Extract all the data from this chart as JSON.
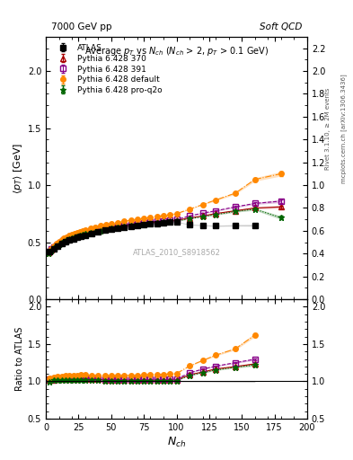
{
  "title_left": "7000 GeV pp",
  "title_right": "Soft QCD",
  "plot_title": "Average p_{T} vs N_{ch} (N_{ch} > 2, p_{T} > 0.1 GeV)",
  "xlabel": "N_{ch}",
  "ylabel_main": "⟨p_{T}⟩ [GeV]",
  "ylabel_ratio": "Ratio to ATLAS",
  "watermark": "ATLAS_2010_S8918562",
  "right_label": "Rivet 3.1.10, ≥ 2M events",
  "right_label2": "mcplots.cern.ch [arXiv:1306.3436]",
  "atlas_x": [
    3,
    6,
    9,
    12,
    15,
    18,
    21,
    24,
    27,
    30,
    35,
    40,
    45,
    50,
    55,
    60,
    65,
    70,
    75,
    80,
    85,
    90,
    95,
    100,
    110,
    120,
    130,
    145,
    160
  ],
  "atlas_y": [
    0.415,
    0.445,
    0.468,
    0.487,
    0.503,
    0.517,
    0.53,
    0.541,
    0.551,
    0.561,
    0.578,
    0.591,
    0.604,
    0.615,
    0.624,
    0.633,
    0.641,
    0.648,
    0.655,
    0.661,
    0.666,
    0.671,
    0.675,
    0.679,
    0.655,
    0.649,
    0.644,
    0.648,
    0.648
  ],
  "atlas_yerr": [
    0.005,
    0.004,
    0.004,
    0.003,
    0.003,
    0.003,
    0.003,
    0.003,
    0.003,
    0.003,
    0.003,
    0.003,
    0.003,
    0.003,
    0.003,
    0.003,
    0.003,
    0.003,
    0.003,
    0.003,
    0.003,
    0.003,
    0.003,
    0.003,
    0.004,
    0.004,
    0.005,
    0.006,
    0.007
  ],
  "py370_x": [
    2,
    4,
    6,
    8,
    10,
    12,
    14,
    16,
    18,
    20,
    22,
    24,
    26,
    28,
    30,
    34,
    38,
    42,
    46,
    50,
    55,
    60,
    65,
    70,
    75,
    80,
    85,
    90,
    95,
    100,
    110,
    120,
    130,
    145,
    160,
    180
  ],
  "py370_y": [
    0.41,
    0.435,
    0.455,
    0.472,
    0.487,
    0.5,
    0.512,
    0.524,
    0.534,
    0.543,
    0.552,
    0.56,
    0.567,
    0.574,
    0.58,
    0.591,
    0.601,
    0.61,
    0.618,
    0.626,
    0.635,
    0.643,
    0.65,
    0.657,
    0.664,
    0.67,
    0.676,
    0.681,
    0.686,
    0.691,
    0.713,
    0.73,
    0.751,
    0.776,
    0.8,
    0.81
  ],
  "py370_yerr": [
    0.003,
    0.003,
    0.003,
    0.003,
    0.002,
    0.002,
    0.002,
    0.002,
    0.002,
    0.002,
    0.002,
    0.002,
    0.002,
    0.002,
    0.002,
    0.002,
    0.002,
    0.002,
    0.002,
    0.002,
    0.002,
    0.002,
    0.002,
    0.002,
    0.002,
    0.002,
    0.002,
    0.002,
    0.002,
    0.002,
    0.003,
    0.004,
    0.005,
    0.006,
    0.008,
    0.012
  ],
  "py391_x": [
    2,
    4,
    6,
    8,
    10,
    12,
    14,
    16,
    18,
    20,
    22,
    24,
    26,
    28,
    30,
    34,
    38,
    42,
    46,
    50,
    55,
    60,
    65,
    70,
    75,
    80,
    85,
    90,
    95,
    100,
    110,
    120,
    130,
    145,
    160,
    180
  ],
  "py391_y": [
    0.415,
    0.44,
    0.46,
    0.477,
    0.492,
    0.506,
    0.518,
    0.529,
    0.539,
    0.549,
    0.558,
    0.566,
    0.573,
    0.58,
    0.586,
    0.598,
    0.608,
    0.617,
    0.626,
    0.633,
    0.642,
    0.65,
    0.658,
    0.665,
    0.672,
    0.678,
    0.684,
    0.689,
    0.694,
    0.699,
    0.73,
    0.755,
    0.775,
    0.81,
    0.84,
    0.86
  ],
  "py391_yerr": [
    0.003,
    0.003,
    0.003,
    0.002,
    0.002,
    0.002,
    0.002,
    0.002,
    0.002,
    0.002,
    0.002,
    0.002,
    0.002,
    0.002,
    0.002,
    0.002,
    0.002,
    0.002,
    0.002,
    0.002,
    0.002,
    0.002,
    0.002,
    0.002,
    0.002,
    0.002,
    0.002,
    0.002,
    0.002,
    0.002,
    0.003,
    0.004,
    0.005,
    0.006,
    0.009,
    0.013
  ],
  "pydef_x": [
    2,
    4,
    6,
    8,
    10,
    12,
    14,
    16,
    18,
    20,
    22,
    24,
    26,
    28,
    30,
    34,
    38,
    42,
    46,
    50,
    55,
    60,
    65,
    70,
    75,
    80,
    85,
    90,
    95,
    100,
    110,
    120,
    130,
    145,
    160,
    180
  ],
  "pydef_y": [
    0.42,
    0.445,
    0.468,
    0.488,
    0.505,
    0.52,
    0.534,
    0.546,
    0.557,
    0.567,
    0.577,
    0.586,
    0.594,
    0.602,
    0.609,
    0.622,
    0.634,
    0.644,
    0.654,
    0.663,
    0.673,
    0.683,
    0.692,
    0.701,
    0.71,
    0.718,
    0.726,
    0.734,
    0.742,
    0.75,
    0.79,
    0.83,
    0.87,
    0.93,
    1.05,
    1.1
  ],
  "pydef_yerr": [
    0.003,
    0.003,
    0.003,
    0.003,
    0.002,
    0.002,
    0.002,
    0.002,
    0.002,
    0.002,
    0.002,
    0.002,
    0.002,
    0.002,
    0.002,
    0.002,
    0.002,
    0.002,
    0.002,
    0.002,
    0.002,
    0.002,
    0.002,
    0.002,
    0.002,
    0.002,
    0.002,
    0.002,
    0.002,
    0.002,
    0.003,
    0.005,
    0.007,
    0.01,
    0.015,
    0.02
  ],
  "pyproq2o_x": [
    2,
    4,
    6,
    8,
    10,
    12,
    14,
    16,
    18,
    20,
    22,
    24,
    26,
    28,
    30,
    34,
    38,
    42,
    46,
    50,
    55,
    60,
    65,
    70,
    75,
    80,
    85,
    90,
    95,
    100,
    110,
    120,
    130,
    145,
    160,
    180
  ],
  "pyproq2o_y": [
    0.4,
    0.428,
    0.45,
    0.468,
    0.483,
    0.496,
    0.508,
    0.518,
    0.528,
    0.537,
    0.545,
    0.553,
    0.56,
    0.567,
    0.573,
    0.584,
    0.594,
    0.603,
    0.611,
    0.619,
    0.628,
    0.636,
    0.643,
    0.65,
    0.657,
    0.663,
    0.669,
    0.675,
    0.68,
    0.685,
    0.706,
    0.724,
    0.742,
    0.77,
    0.79,
    0.715
  ],
  "pyproq2o_yerr": [
    0.003,
    0.003,
    0.003,
    0.002,
    0.002,
    0.002,
    0.002,
    0.002,
    0.002,
    0.002,
    0.002,
    0.002,
    0.002,
    0.002,
    0.002,
    0.002,
    0.002,
    0.002,
    0.002,
    0.002,
    0.002,
    0.002,
    0.002,
    0.002,
    0.002,
    0.002,
    0.002,
    0.002,
    0.002,
    0.002,
    0.003,
    0.004,
    0.005,
    0.007,
    0.01,
    0.015
  ],
  "color_atlas": "#000000",
  "color_py370": "#aa0000",
  "color_py391": "#880088",
  "color_pydef": "#ff8800",
  "color_pyproq2o": "#006600",
  "ylim_main": [
    0.0,
    2.3
  ],
  "ylim_ratio": [
    0.5,
    2.1
  ],
  "xlim": [
    0,
    200
  ]
}
